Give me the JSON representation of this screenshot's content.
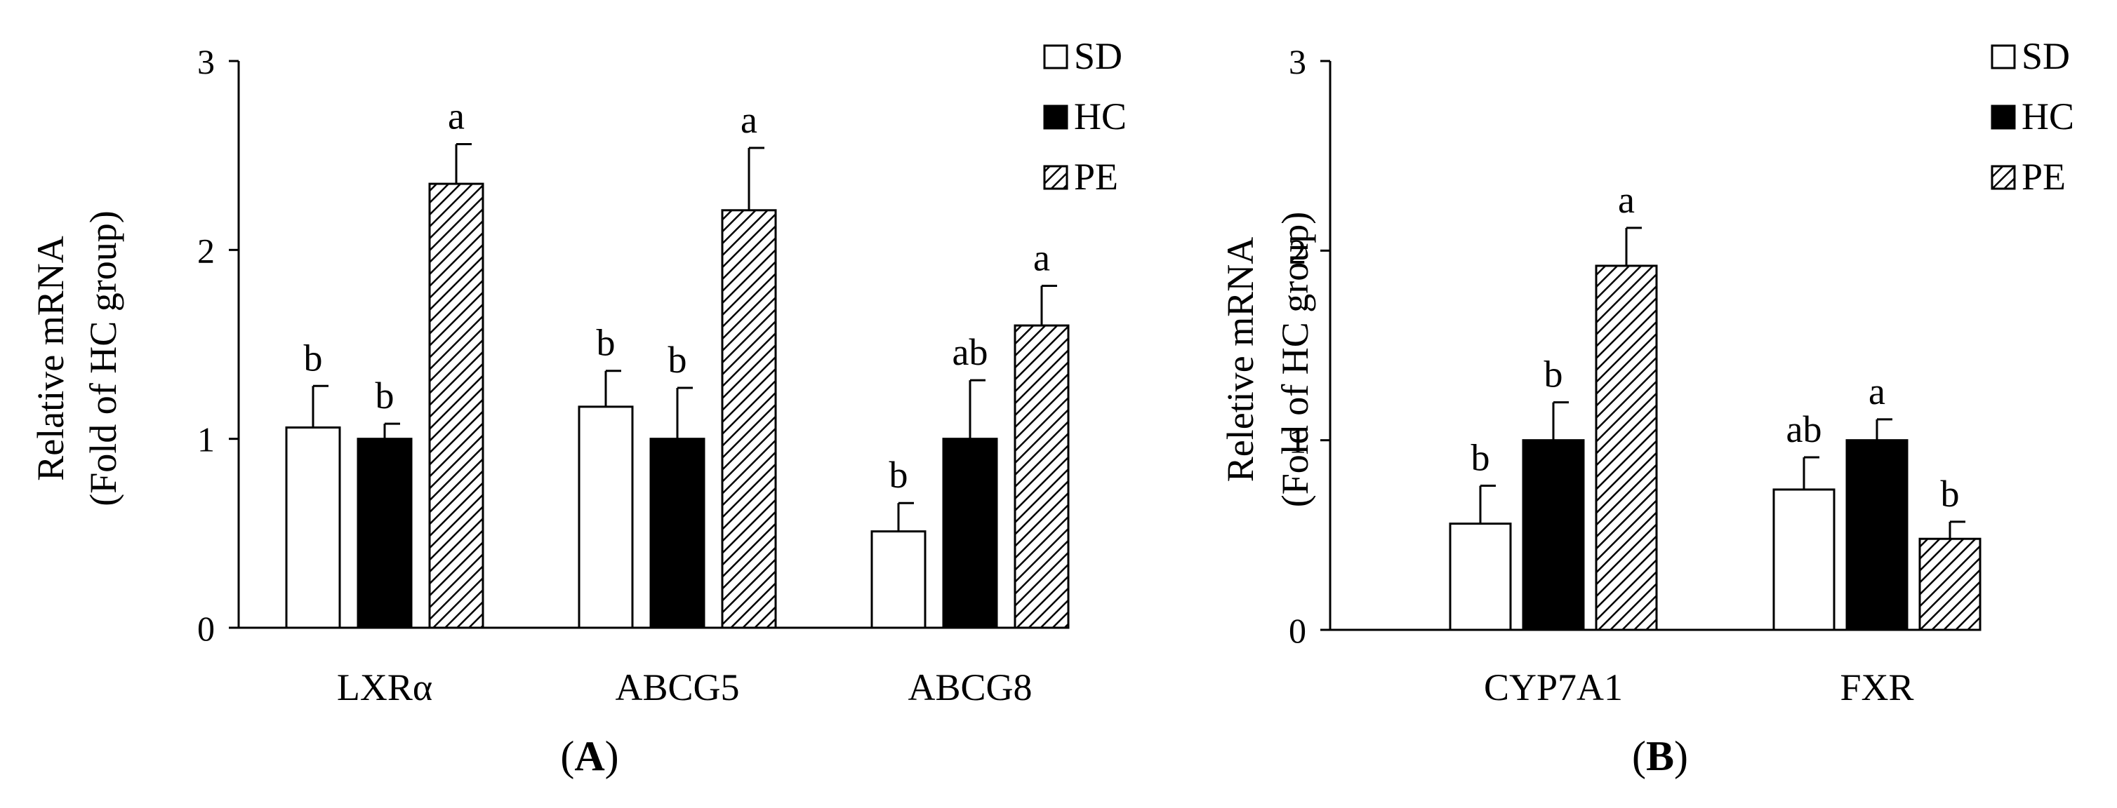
{
  "chart_data": [
    {
      "type": "bar",
      "panel_label": "A",
      "ylabel": [
        "Relative mRNA",
        "(Fold of HC group)"
      ],
      "ylim": [
        0,
        3
      ],
      "yticks": [
        0,
        1,
        2,
        3
      ],
      "categories": [
        "LXRα",
        "ABCG5",
        "ABCG8"
      ],
      "legend_position": "top-right",
      "series": [
        {
          "name": "SD",
          "fill": "white",
          "values": [
            1.06,
            1.17,
            0.51
          ],
          "errors": [
            0.22,
            0.19,
            0.15
          ],
          "labels": [
            "b",
            "b",
            "b"
          ]
        },
        {
          "name": "HC",
          "fill": "black",
          "values": [
            1.0,
            1.0,
            1.0
          ],
          "errors": [
            0.08,
            0.27,
            0.31
          ],
          "labels": [
            "b",
            "b",
            "ab"
          ]
        },
        {
          "name": "PE",
          "fill": "hatched",
          "values": [
            2.35,
            2.21,
            1.6
          ],
          "errors": [
            0.21,
            0.33,
            0.21
          ],
          "labels": [
            "a",
            "a",
            "a"
          ]
        }
      ]
    },
    {
      "type": "bar",
      "panel_label": "B",
      "ylabel": [
        "Reletive mRNA",
        "(Fold of HC group)"
      ],
      "ylim": [
        0,
        3
      ],
      "yticks": [
        0,
        1,
        2,
        3
      ],
      "categories": [
        "CYP7A1",
        "FXR"
      ],
      "legend_position": "top-right",
      "series": [
        {
          "name": "SD",
          "fill": "white",
          "values": [
            0.56,
            0.74
          ],
          "errors": [
            0.2,
            0.17
          ],
          "labels": [
            "b",
            "ab"
          ]
        },
        {
          "name": "HC",
          "fill": "black",
          "values": [
            1.0,
            1.0
          ],
          "errors": [
            0.2,
            0.11
          ],
          "labels": [
            "b",
            "a"
          ]
        },
        {
          "name": "PE",
          "fill": "hatched",
          "values": [
            1.92,
            0.48
          ],
          "errors": [
            0.2,
            0.09
          ],
          "labels": [
            "a",
            "b"
          ]
        }
      ]
    }
  ]
}
